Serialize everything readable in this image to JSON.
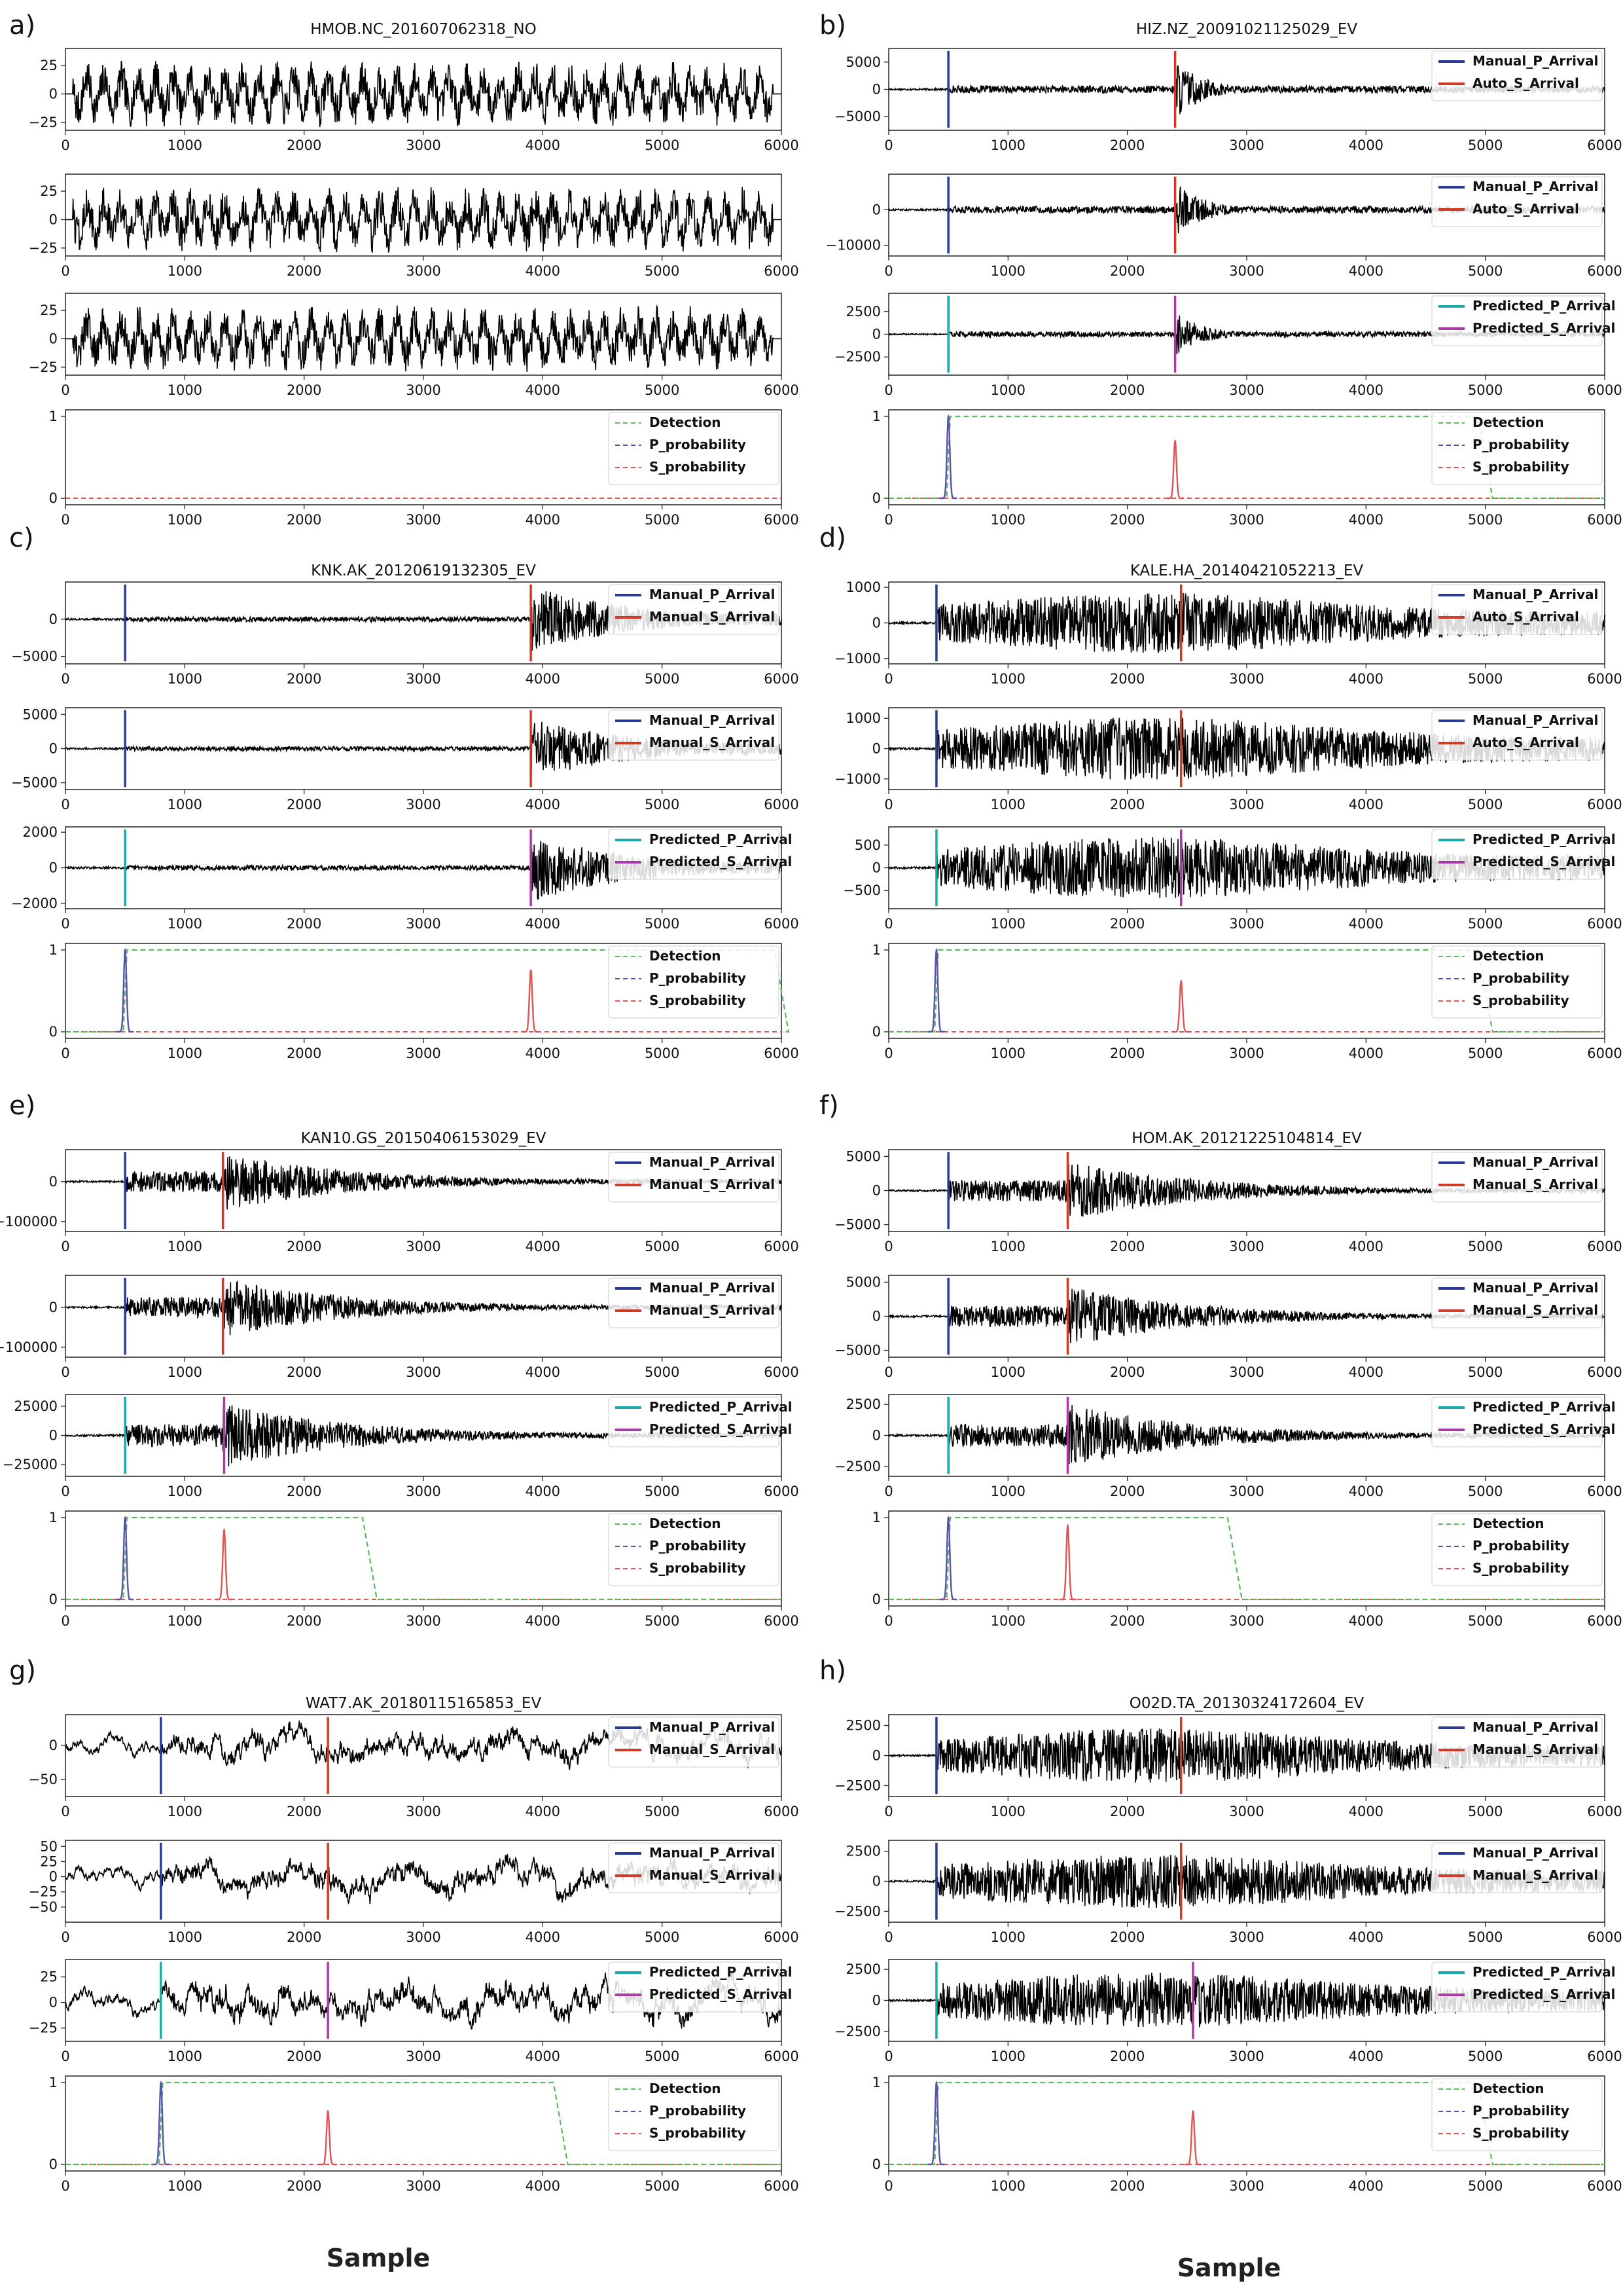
{
  "figure": {
    "xlabel": "Sample"
  },
  "colors": {
    "waveform": "#000000",
    "manual_p": "#2b3a9a",
    "manual_s": "#d03a26",
    "auto_s": "#d03a26",
    "predicted_p": "#1aaaa8",
    "predicted_s": "#a93aa8",
    "detection": "#5cb85c",
    "p_probability": "#5555aa",
    "s_probability": "#dd5555"
  },
  "chart_data": [
    {
      "type": "line",
      "panel_label": "a)",
      "title": "HMOB.NC_201607062318_NO",
      "xlim": [
        0,
        6000
      ],
      "xticks": [
        0,
        1000,
        2000,
        3000,
        4000,
        5000,
        6000
      ],
      "p_pick": null,
      "s_pick": null,
      "predicted_p": null,
      "predicted_s": null,
      "waveform_style": "noise",
      "channels": [
        {
          "ylim": [
            -32,
            40
          ],
          "yticks": [
            -25,
            0,
            25
          ],
          "amplitude": 30,
          "legend": []
        },
        {
          "ylim": [
            -32,
            40
          ],
          "yticks": [
            -25,
            0,
            25
          ],
          "amplitude": 30,
          "legend": []
        },
        {
          "ylim": [
            -32,
            40
          ],
          "yticks": [
            -25,
            0,
            25
          ],
          "amplitude": 30,
          "legend": []
        }
      ],
      "probability": {
        "ylim": [
          0,
          1
        ],
        "yticks": [
          0,
          1
        ],
        "legend": [
          "Detection",
          "P_probability",
          "S_probability"
        ],
        "detection": null,
        "p_peak": null,
        "s_peak": null
      }
    },
    {
      "type": "line",
      "panel_label": "b)",
      "title": "HIZ.NZ_20091021125029_EV",
      "xlim": [
        0,
        6000
      ],
      "xticks": [
        0,
        1000,
        2000,
        3000,
        4000,
        5000,
        6000
      ],
      "p_pick": 500,
      "s_pick": 2400,
      "predicted_p": 500,
      "predicted_s": 2400,
      "waveform_style": "spike",
      "channels": [
        {
          "ylim": [
            -7500,
            7500
          ],
          "yticks": [
            -5000,
            0,
            5000
          ],
          "amplitude": 5500,
          "legend": [
            "Manual_P_Arrival",
            "Auto_S_Arrival"
          ]
        },
        {
          "ylim": [
            -13000,
            10000
          ],
          "yticks": [
            -10000,
            0
          ],
          "amplitude": 8000,
          "legend": [
            "Manual_P_Arrival",
            "Auto_S_Arrival"
          ]
        },
        {
          "ylim": [
            -4500,
            4500
          ],
          "yticks": [
            -2500,
            0,
            2500
          ],
          "amplitude": 2500,
          "legend": [
            "Predicted_P_Arrival",
            "Predicted_S_Arrival"
          ]
        }
      ],
      "probability": {
        "ylim": [
          0,
          1
        ],
        "yticks": [
          0,
          1
        ],
        "legend": [
          "Detection",
          "P_probability",
          "S_probability"
        ],
        "detection": [
          500,
          5000
        ],
        "p_peak": 1.0,
        "s_peak": 0.7
      }
    },
    {
      "type": "line",
      "panel_label": "c)",
      "title": "KNK.AK_20120619132305_EV",
      "xlim": [
        0,
        6000
      ],
      "xticks": [
        0,
        1000,
        2000,
        3000,
        4000,
        5000,
        6000
      ],
      "p_pick": 500,
      "s_pick": 3900,
      "predicted_p": 500,
      "predicted_s": 3900,
      "waveform_style": "late",
      "channels": [
        {
          "ylim": [
            -6000,
            5000
          ],
          "yticks": [
            -5000,
            0
          ],
          "amplitude": 4500,
          "legend": [
            "Manual_P_Arrival",
            "Manual_S_Arrival"
          ]
        },
        {
          "ylim": [
            -6000,
            6000
          ],
          "yticks": [
            -5000,
            0,
            5000
          ],
          "amplitude": 4500,
          "legend": [
            "Manual_P_Arrival",
            "Manual_S_Arrival"
          ]
        },
        {
          "ylim": [
            -2300,
            2300
          ],
          "yticks": [
            -2000,
            0,
            2000
          ],
          "amplitude": 1900,
          "legend": [
            "Predicted_P_Arrival",
            "Predicted_S_Arrival"
          ]
        }
      ],
      "probability": {
        "ylim": [
          0,
          1
        ],
        "yticks": [
          0,
          1
        ],
        "legend": [
          "Detection",
          "P_probability",
          "S_probability"
        ],
        "detection": [
          500,
          6000
        ],
        "p_peak": 1.0,
        "s_peak": 0.75
      }
    },
    {
      "type": "line",
      "panel_label": "d)",
      "title": "KALE.HA_20140421052213_EV",
      "xlim": [
        0,
        6000
      ],
      "xticks": [
        0,
        1000,
        2000,
        3000,
        4000,
        5000,
        6000
      ],
      "p_pick": 400,
      "s_pick": 2450,
      "predicted_p": 400,
      "predicted_s": 2450,
      "waveform_style": "broad",
      "channels": [
        {
          "ylim": [
            -1150,
            1150
          ],
          "yticks": [
            -1000,
            0,
            1000
          ],
          "amplitude": 950,
          "legend": [
            "Manual_P_Arrival",
            "Auto_S_Arrival"
          ]
        },
        {
          "ylim": [
            -1350,
            1350
          ],
          "yticks": [
            -1000,
            0,
            1000
          ],
          "amplitude": 1150,
          "legend": [
            "Manual_P_Arrival",
            "Auto_S_Arrival"
          ]
        },
        {
          "ylim": [
            -900,
            900
          ],
          "yticks": [
            -500,
            0,
            500
          ],
          "amplitude": 750,
          "legend": [
            "Predicted_P_Arrival",
            "Predicted_S_Arrival"
          ]
        }
      ],
      "probability": {
        "ylim": [
          0,
          1
        ],
        "yticks": [
          0,
          1
        ],
        "legend": [
          "Detection",
          "P_probability",
          "S_probability"
        ],
        "detection": [
          400,
          5000
        ],
        "p_peak": 1.0,
        "s_peak": 0.62
      }
    },
    {
      "type": "line",
      "panel_label": "e)",
      "title": "KAN10.GS_20150406153029_EV",
      "xlim": [
        0,
        6000
      ],
      "xticks": [
        0,
        1000,
        2000,
        3000,
        4000,
        5000,
        6000
      ],
      "p_pick": 500,
      "s_pick": 1320,
      "predicted_p": 500,
      "predicted_s": 1330,
      "waveform_style": "early",
      "channels": [
        {
          "ylim": [
            -125000,
            80000
          ],
          "yticks": [
            -100000,
            0
          ],
          "amplitude": 75000,
          "legend": [
            "Manual_P_Arrival",
            "Manual_S_Arrival"
          ]
        },
        {
          "ylim": [
            -125000,
            80000
          ],
          "yticks": [
            -100000,
            0
          ],
          "amplitude": 75000,
          "legend": [
            "Manual_P_Arrival",
            "Manual_S_Arrival"
          ]
        },
        {
          "ylim": [
            -35000,
            35000
          ],
          "yticks": [
            -25000,
            0,
            25000
          ],
          "amplitude": 28000,
          "legend": [
            "Predicted_P_Arrival",
            "Predicted_S_Arrival"
          ]
        }
      ],
      "probability": {
        "ylim": [
          0,
          1
        ],
        "yticks": [
          0,
          1
        ],
        "legend": [
          "Detection",
          "P_probability",
          "S_probability"
        ],
        "detection": [
          500,
          2550
        ],
        "p_peak": 1.0,
        "s_peak": 0.85
      }
    },
    {
      "type": "line",
      "panel_label": "f)",
      "title": "HOM.AK_20121225104814_EV",
      "xlim": [
        0,
        6000
      ],
      "xticks": [
        0,
        1000,
        2000,
        3000,
        4000,
        5000,
        6000
      ],
      "p_pick": 500,
      "s_pick": 1500,
      "predicted_p": 500,
      "predicted_s": 1500,
      "waveform_style": "early",
      "channels": [
        {
          "ylim": [
            -6000,
            6000
          ],
          "yticks": [
            -5000,
            0,
            5000
          ],
          "amplitude": 4500,
          "legend": [
            "Manual_P_Arrival",
            "Manual_S_Arrival"
          ]
        },
        {
          "ylim": [
            -6000,
            6000
          ],
          "yticks": [
            -5000,
            0,
            5000
          ],
          "amplitude": 4500,
          "legend": [
            "Manual_P_Arrival",
            "Manual_S_Arrival"
          ]
        },
        {
          "ylim": [
            -3300,
            3300
          ],
          "yticks": [
            -2500,
            0,
            2500
          ],
          "amplitude": 2600,
          "legend": [
            "Predicted_P_Arrival",
            "Predicted_S_Arrival"
          ]
        }
      ],
      "probability": {
        "ylim": [
          0,
          1
        ],
        "yticks": [
          0,
          1
        ],
        "legend": [
          "Detection",
          "P_probability",
          "S_probability"
        ],
        "detection": [
          500,
          2900
        ],
        "p_peak": 1.0,
        "s_peak": 0.9
      }
    },
    {
      "type": "line",
      "panel_label": "g)",
      "title": "WAT7.AK_20180115165853_EV",
      "xlim": [
        0,
        6000
      ],
      "xticks": [
        0,
        1000,
        2000,
        3000,
        4000,
        5000,
        6000
      ],
      "p_pick": 800,
      "s_pick": 2200,
      "predicted_p": 800,
      "predicted_s": 2200,
      "waveform_style": "wavy",
      "channels": [
        {
          "ylim": [
            -75,
            45
          ],
          "yticks": [
            -50,
            0
          ],
          "amplitude": 30,
          "legend": [
            "Manual_P_Arrival",
            "Manual_S_Arrival"
          ]
        },
        {
          "ylim": [
            -75,
            60
          ],
          "yticks": [
            -50,
            -25,
            0,
            25,
            50
          ],
          "amplitude": 35,
          "legend": [
            "Manual_P_Arrival",
            "Manual_S_Arrival"
          ]
        },
        {
          "ylim": [
            -38,
            42
          ],
          "yticks": [
            -25,
            0,
            25
          ],
          "amplitude": 25,
          "legend": [
            "Predicted_P_Arrival",
            "Predicted_S_Arrival"
          ]
        }
      ],
      "probability": {
        "ylim": [
          0,
          1
        ],
        "yticks": [
          0,
          1
        ],
        "legend": [
          "Detection",
          "P_probability",
          "S_probability"
        ],
        "detection": [
          800,
          4150
        ],
        "p_peak": 1.0,
        "s_peak": 0.65
      }
    },
    {
      "type": "line",
      "panel_label": "h)",
      "title": "O02D.TA_20130324172604_EV",
      "xlim": [
        0,
        6000
      ],
      "xticks": [
        0,
        1000,
        2000,
        3000,
        4000,
        5000,
        6000
      ],
      "p_pick": 400,
      "s_pick": 2450,
      "predicted_p": 400,
      "predicted_s": 2550,
      "waveform_style": "broad",
      "channels": [
        {
          "ylim": [
            -3400,
            3400
          ],
          "yticks": [
            -2500,
            0,
            2500
          ],
          "amplitude": 2500,
          "legend": [
            "Manual_P_Arrival",
            "Manual_S_Arrival"
          ]
        },
        {
          "ylim": [
            -3400,
            3400
          ],
          "yticks": [
            -2500,
            0,
            2500
          ],
          "amplitude": 2500,
          "legend": [
            "Manual_P_Arrival",
            "Manual_S_Arrival"
          ]
        },
        {
          "ylim": [
            -3300,
            3300
          ],
          "yticks": [
            -2500,
            0,
            2500
          ],
          "amplitude": 2500,
          "legend": [
            "Predicted_P_Arrival",
            "Predicted_S_Arrival"
          ]
        }
      ],
      "probability": {
        "ylim": [
          0,
          1
        ],
        "yticks": [
          0,
          1
        ],
        "legend": [
          "Detection",
          "P_probability",
          "S_probability"
        ],
        "detection": [
          400,
          5000
        ],
        "p_peak": 1.0,
        "s_peak": 0.65
      }
    }
  ]
}
